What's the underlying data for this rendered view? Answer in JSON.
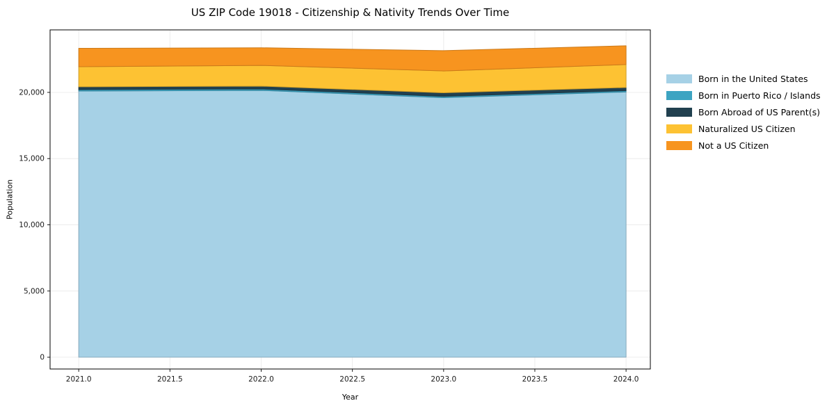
{
  "title": "US ZIP Code 19018 - Citizenship & Nativity Trends Over Time",
  "chart_data": {
    "type": "area",
    "stacked": true,
    "title": "US ZIP Code 19018 - Citizenship & Nativity Trends Over Time",
    "xlabel": "Year",
    "ylabel": "Population",
    "x": [
      2021,
      2022,
      2023,
      2024
    ],
    "series": [
      {
        "name": "Born in the United States",
        "color": "#a6d1e6",
        "values": [
          20100,
          20150,
          19600,
          20030
        ]
      },
      {
        "name": "Born in Puerto Rico / Islands",
        "color": "#3da4c2",
        "values": [
          110,
          110,
          100,
          100
        ]
      },
      {
        "name": "Born Abroad of US Parent(s)",
        "color": "#21404f",
        "values": [
          210,
          210,
          270,
          240
        ]
      },
      {
        "name": "Naturalized US Citizen",
        "color": "#fdc233",
        "values": [
          1520,
          1570,
          1650,
          1730
        ]
      },
      {
        "name": "Not a US Citizen",
        "color": "#f7941f",
        "values": [
          1390,
          1330,
          1530,
          1420
        ]
      }
    ],
    "x_ticks": [
      "2021.0",
      "2021.5",
      "2022.0",
      "2022.5",
      "2023.0",
      "2023.5",
      "2024.0"
    ],
    "x_tick_values": [
      2021.0,
      2021.5,
      2022.0,
      2022.5,
      2023.0,
      2023.5,
      2024.0
    ],
    "y_ticks": [
      "0",
      "5,000",
      "10,000",
      "15,000",
      "20,000"
    ],
    "y_tick_values": [
      0,
      5000,
      10000,
      15000,
      20000
    ],
    "xlim": [
      2020.843,
      2024.133
    ],
    "ylim": [
      -890,
      24720
    ],
    "grid": true,
    "grid_color": "#ececec",
    "spine_color": "#000000",
    "legend_position": "right outside"
  }
}
